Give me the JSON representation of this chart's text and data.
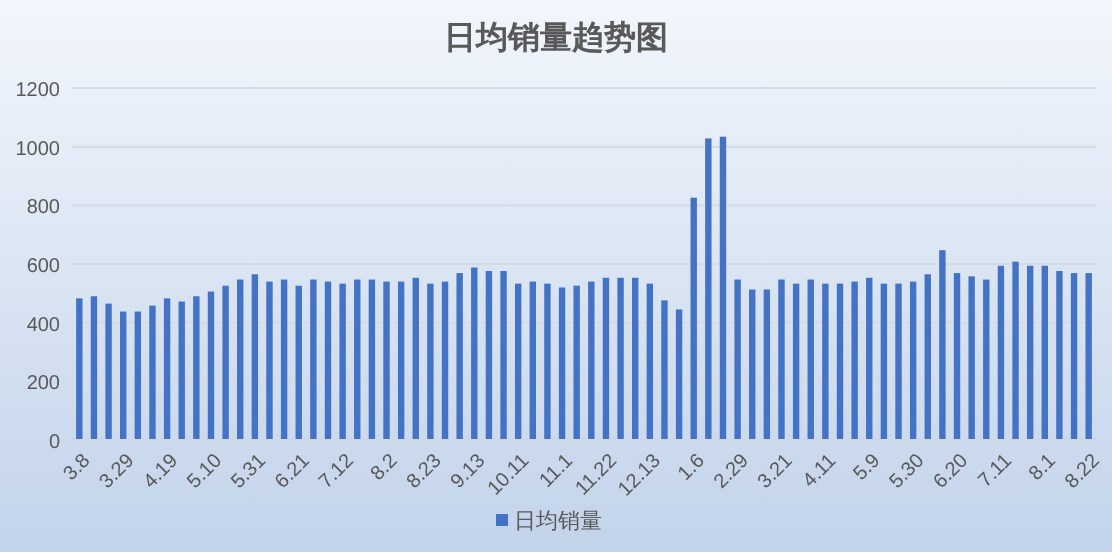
{
  "chart_data": {
    "type": "bar",
    "title": "日均销量趋势图",
    "categories": [
      "3.8",
      null,
      null,
      "3.29",
      null,
      null,
      "4.19",
      null,
      null,
      "5.10",
      null,
      null,
      "5.31",
      null,
      null,
      "6.21",
      null,
      null,
      "7.12",
      null,
      null,
      "8.2",
      null,
      null,
      "8.23",
      null,
      null,
      "9.13",
      null,
      null,
      "10.11",
      null,
      null,
      "11.1",
      null,
      null,
      "11.22",
      null,
      null,
      "12.13",
      null,
      null,
      "1.6",
      null,
      null,
      "2.29",
      null,
      null,
      "3.21",
      null,
      null,
      "4.11",
      null,
      null,
      "5.9",
      null,
      null,
      "5.30",
      null,
      null,
      "6.20",
      null,
      null,
      "7.11",
      null,
      null,
      "8.1",
      null,
      null,
      "8.22"
    ],
    "series": [
      {
        "name": "日均销量",
        "color": "#4472c4",
        "values": [
          483,
          490,
          465,
          438,
          438,
          458,
          483,
          472,
          490,
          506,
          526,
          547,
          565,
          540,
          547,
          526,
          547,
          540,
          533,
          547,
          547,
          540,
          540,
          553,
          533,
          540,
          569,
          588,
          576,
          576,
          533,
          540,
          533,
          520,
          526,
          540,
          553,
          553,
          553,
          533,
          476,
          445,
          826,
          1028,
          1034,
          547,
          513,
          513,
          547,
          533,
          547,
          533,
          533,
          540,
          553,
          533,
          533,
          540,
          565,
          647,
          569,
          558,
          547,
          594,
          608,
          594,
          594,
          576,
          569,
          569
        ]
      }
    ],
    "ylim": [
      0,
      1200
    ],
    "yticks": [
      0,
      200,
      400,
      600,
      800,
      1000,
      1200
    ],
    "grid": "y",
    "legend": "bottom"
  }
}
